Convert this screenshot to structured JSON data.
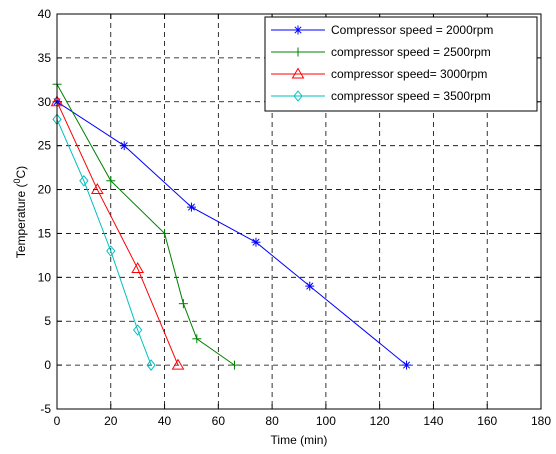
{
  "chart_data": {
    "type": "line",
    "title": "",
    "xlabel": "Time (min)",
    "ylabel_prefix": "Temperature (",
    "ylabel_sup": "0",
    "ylabel_suffix": "C)",
    "xlim": [
      0,
      180
    ],
    "ylim": [
      -5,
      40
    ],
    "xticks": [
      0,
      20,
      40,
      60,
      80,
      100,
      120,
      140,
      160,
      180
    ],
    "yticks": [
      -5,
      0,
      5,
      10,
      15,
      20,
      25,
      30,
      35,
      40
    ],
    "grid": true,
    "legend_position": "top-right",
    "series": [
      {
        "name": "Compressor speed = 2000rpm",
        "color": "#0000ff",
        "marker": "star",
        "x": [
          0,
          25,
          50,
          74,
          94,
          130
        ],
        "y": [
          30,
          25,
          18,
          14,
          9,
          0
        ]
      },
      {
        "name": "compressor speed = 2500rpm",
        "color": "#008000",
        "marker": "plus",
        "x": [
          0,
          20,
          40,
          47,
          52,
          66
        ],
        "y": [
          32,
          21,
          15,
          7,
          3,
          0
        ]
      },
      {
        "name": "compressor speed= 3000rpm",
        "color": "#ff0000",
        "marker": "triangle",
        "x": [
          0,
          15,
          30,
          45
        ],
        "y": [
          30,
          20,
          11,
          0
        ]
      },
      {
        "name": "compressor speed = 3500rpm",
        "color": "#00bfbf",
        "marker": "diamond",
        "x": [
          0,
          10,
          20,
          30,
          35
        ],
        "y": [
          28,
          21,
          13,
          4,
          0
        ]
      }
    ]
  }
}
